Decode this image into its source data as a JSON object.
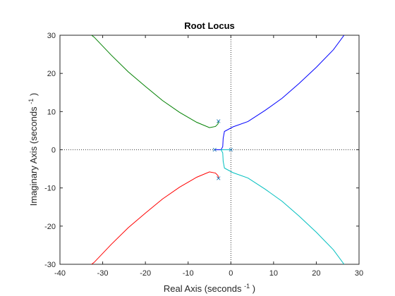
{
  "chart_data": {
    "type": "line",
    "title": "Root Locus",
    "xlabel": "Real Axis (seconds",
    "ylabel": "Imaginary Axis (seconds",
    "axis_unit_superscript": "-1",
    "xlim": [
      -40,
      30
    ],
    "ylim": [
      -30,
      30
    ],
    "xticks": [
      -40,
      -30,
      -20,
      -10,
      0,
      10,
      20,
      30
    ],
    "yticks": [
      -30,
      -20,
      -10,
      0,
      10,
      20,
      30
    ],
    "grid": false,
    "reference_lines": {
      "x": 0,
      "y": 0,
      "style": "dotted",
      "color": "#000000"
    },
    "poles": [
      {
        "x": -2.9,
        "y": 7.5
      },
      {
        "x": -2.9,
        "y": -7.5
      },
      {
        "x": -3.8,
        "y": 0
      },
      {
        "x": 0,
        "y": 0
      }
    ],
    "pole_marker": "×",
    "pole_color": "#1f77b4",
    "series": [
      {
        "color": "#008000",
        "points": [
          [
            -2.9,
            7.5
          ],
          [
            -3.0,
            6.8
          ],
          [
            -3.6,
            6.1
          ],
          [
            -5.0,
            5.8
          ],
          [
            -8.0,
            7.2
          ],
          [
            -12.0,
            9.8
          ],
          [
            -16.0,
            12.9
          ],
          [
            -20.0,
            16.6
          ],
          [
            -24.0,
            20.4
          ],
          [
            -28.0,
            24.8
          ],
          [
            -32.0,
            29.5
          ],
          [
            -32.6,
            30.0
          ]
        ]
      },
      {
        "color": "#ff0000",
        "points": [
          [
            -2.9,
            -7.5
          ],
          [
            -3.0,
            -6.8
          ],
          [
            -3.6,
            -6.1
          ],
          [
            -5.0,
            -5.8
          ],
          [
            -8.0,
            -7.2
          ],
          [
            -12.0,
            -9.8
          ],
          [
            -16.0,
            -12.9
          ],
          [
            -20.0,
            -16.6
          ],
          [
            -24.0,
            -20.4
          ],
          [
            -28.0,
            -24.8
          ],
          [
            -32.0,
            -29.5
          ],
          [
            -32.6,
            -30.0
          ]
        ]
      },
      {
        "color": "#0000ff",
        "points": [
          [
            -3.8,
            0
          ],
          [
            -2.3,
            0
          ],
          [
            -1.9,
            0.8
          ],
          [
            -1.8,
            3.0
          ],
          [
            -1.5,
            4.8
          ],
          [
            0.5,
            6.0
          ],
          [
            4.0,
            7.4
          ],
          [
            8.0,
            10.3
          ],
          [
            12.0,
            13.5
          ],
          [
            16.0,
            17.4
          ],
          [
            20.0,
            21.6
          ],
          [
            24.0,
            26.2
          ],
          [
            26.5,
            30.0
          ]
        ]
      },
      {
        "color": "#00bfbf",
        "points": [
          [
            0,
            0
          ],
          [
            -2.3,
            0
          ],
          [
            -1.9,
            -0.8
          ],
          [
            -1.8,
            -3.0
          ],
          [
            -1.5,
            -4.8
          ],
          [
            0.5,
            -6.0
          ],
          [
            4.0,
            -7.4
          ],
          [
            8.0,
            -10.3
          ],
          [
            12.0,
            -13.5
          ],
          [
            16.0,
            -17.4
          ],
          [
            20.0,
            -21.6
          ],
          [
            24.0,
            -26.2
          ],
          [
            26.5,
            -30.0
          ]
        ]
      }
    ]
  }
}
